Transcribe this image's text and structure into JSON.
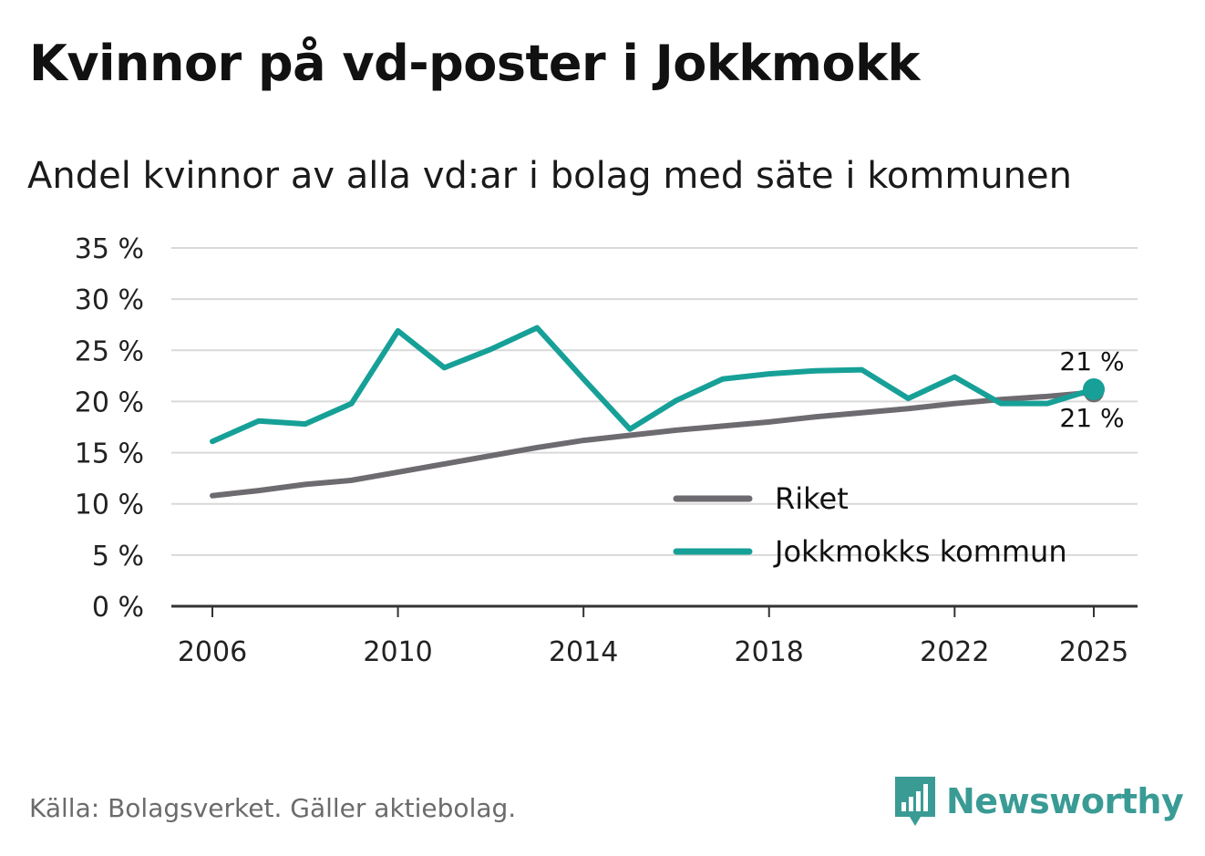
{
  "title": "Kvinnor på vd-poster i Jokkmokk",
  "subtitle": "Andel kvinnor av alla vd:ar i bolag med säte i kommunen",
  "source": "Källa: Bolagsverket. Gäller aktiebolag.",
  "brand": "Newsworthy",
  "colors": {
    "riket": "#6e6b70",
    "jokkmokk": "#16a097",
    "grid": "#d9d9d9",
    "axis": "#333333",
    "brand": "#3a9b95"
  },
  "chart_data": {
    "type": "line",
    "title": "Kvinnor på vd-poster i Jokkmokk",
    "subtitle": "Andel kvinnor av alla vd:ar i bolag med säte i kommunen",
    "x": [
      2006,
      2007,
      2008,
      2009,
      2010,
      2011,
      2012,
      2013,
      2014,
      2015,
      2016,
      2017,
      2018,
      2019,
      2020,
      2021,
      2022,
      2023,
      2024,
      2025
    ],
    "series": [
      {
        "name": "Riket",
        "color": "#6e6b70",
        "values": [
          10.8,
          11.3,
          11.9,
          12.3,
          13.1,
          13.9,
          14.7,
          15.5,
          16.2,
          16.7,
          17.2,
          17.6,
          18.0,
          18.5,
          18.9,
          19.3,
          19.8,
          20.2,
          20.5,
          20.9
        ]
      },
      {
        "name": "Jokkmokks kommun",
        "color": "#16a097",
        "values": [
          16.1,
          18.1,
          17.8,
          19.8,
          26.9,
          23.3,
          25.1,
          27.2,
          22.2,
          17.3,
          20.1,
          22.2,
          22.7,
          23.0,
          23.1,
          20.3,
          22.4,
          19.8,
          19.8,
          21.2
        ]
      }
    ],
    "xticks": [
      "2006",
      "2010",
      "2014",
      "2018",
      "2022",
      "2025"
    ],
    "yticks": [
      "0 %",
      "5 %",
      "10 %",
      "15 %",
      "20 %",
      "25 %",
      "30 %",
      "35 %"
    ],
    "ylim": [
      0,
      35
    ],
    "xlim": [
      2006,
      2025
    ],
    "end_labels": {
      "jokkmokk": "21 %",
      "riket": "21 %"
    },
    "legend": [
      "Riket",
      "Jokkmokks kommun"
    ],
    "legend_position": "lower-right",
    "grid": true
  }
}
